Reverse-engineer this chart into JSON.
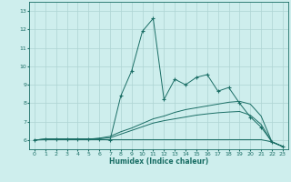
{
  "xlabel": "Humidex (Indice chaleur)",
  "xlim": [
    -0.5,
    23.5
  ],
  "ylim": [
    5.5,
    13.5
  ],
  "yticks": [
    6,
    7,
    8,
    9,
    10,
    11,
    12,
    13
  ],
  "xticks": [
    0,
    1,
    2,
    3,
    4,
    5,
    6,
    7,
    8,
    9,
    10,
    11,
    12,
    13,
    14,
    15,
    16,
    17,
    18,
    19,
    20,
    21,
    22,
    23
  ],
  "background_color": "#ceeeed",
  "grid_color": "#aed4d3",
  "line_color": "#1a6e65",
  "lines": [
    {
      "x": [
        0,
        1,
        2,
        3,
        4,
        5,
        6,
        7,
        8,
        9,
        10,
        11,
        12,
        13,
        14,
        15,
        16,
        17,
        18,
        19,
        20,
        21,
        22,
        23
      ],
      "y": [
        6.0,
        6.05,
        6.05,
        6.05,
        6.05,
        6.05,
        6.05,
        6.0,
        8.4,
        9.75,
        11.9,
        12.6,
        8.2,
        9.3,
        9.0,
        9.4,
        9.55,
        8.65,
        8.85,
        8.0,
        7.25,
        6.7,
        5.9,
        5.65
      ],
      "marker": "+"
    },
    {
      "x": [
        0,
        1,
        2,
        3,
        4,
        5,
        6,
        7,
        8,
        9,
        10,
        11,
        12,
        13,
        14,
        15,
        16,
        17,
        18,
        19,
        20,
        21,
        22,
        23
      ],
      "y": [
        6.0,
        6.05,
        6.05,
        6.05,
        6.05,
        6.05,
        6.1,
        6.2,
        6.45,
        6.65,
        6.9,
        7.15,
        7.3,
        7.5,
        7.65,
        7.75,
        7.85,
        7.95,
        8.05,
        8.1,
        7.95,
        7.3,
        5.9,
        5.65
      ],
      "marker": null
    },
    {
      "x": [
        0,
        1,
        2,
        3,
        4,
        5,
        6,
        7,
        8,
        9,
        10,
        11,
        12,
        13,
        14,
        15,
        16,
        17,
        18,
        19,
        20,
        21,
        22,
        23
      ],
      "y": [
        6.0,
        6.05,
        6.05,
        6.05,
        6.05,
        6.05,
        6.08,
        6.12,
        6.32,
        6.52,
        6.72,
        6.92,
        7.05,
        7.15,
        7.25,
        7.35,
        7.42,
        7.48,
        7.52,
        7.55,
        7.35,
        6.85,
        5.9,
        5.65
      ],
      "marker": null
    },
    {
      "x": [
        0,
        1,
        2,
        3,
        4,
        5,
        6,
        7,
        8,
        9,
        10,
        11,
        12,
        13,
        14,
        15,
        16,
        17,
        18,
        19,
        20,
        21,
        22,
        23
      ],
      "y": [
        6.0,
        6.02,
        6.02,
        6.02,
        6.02,
        6.02,
        6.02,
        6.02,
        6.02,
        6.02,
        6.02,
        6.02,
        6.02,
        6.02,
        6.02,
        6.02,
        6.02,
        6.02,
        6.02,
        6.02,
        6.02,
        6.02,
        5.9,
        5.65
      ],
      "marker": null
    }
  ]
}
